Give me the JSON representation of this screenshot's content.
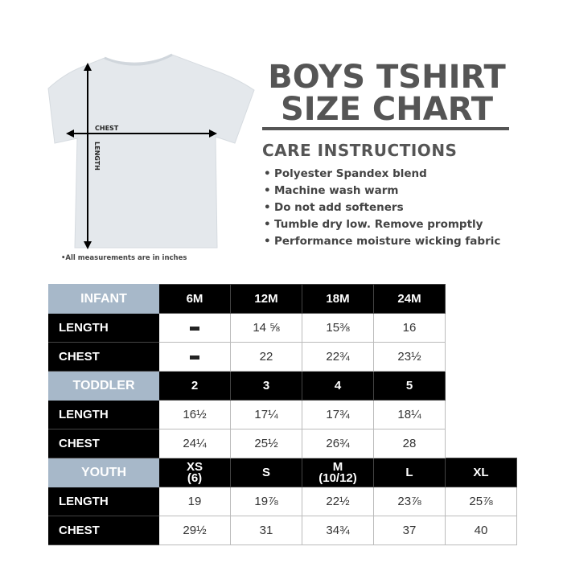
{
  "diagram": {
    "chest_label": "CHEST",
    "length_label": "LENGTH",
    "note": "•All measurements are in inches",
    "shirt_color": "#e4e8ec"
  },
  "header": {
    "title_line1": "BOYS TSHIRT",
    "title_line2": "SIZE CHART"
  },
  "care": {
    "title": "CARE INSTRUCTIONS",
    "items": [
      "Polyester Spandex blend",
      "Machine wash warm",
      "Do not add softeners",
      "Tumble dry low. Remove promptly",
      "Performance moisture wicking fabric"
    ]
  },
  "size_table": {
    "colors": {
      "group_header": "#a7b8c9",
      "header": "#000000"
    },
    "groups": [
      {
        "name": "INFANT",
        "sizes": [
          "6M",
          "12M",
          "18M",
          "24M"
        ],
        "rows": [
          {
            "label": "LENGTH",
            "values": [
              "–",
              "14 ⅝",
              "15⅜",
              "16"
            ]
          },
          {
            "label": "CHEST",
            "values": [
              "–",
              "22",
              "22¾",
              "23½"
            ]
          }
        ]
      },
      {
        "name": "TODDLER",
        "sizes": [
          "2",
          "3",
          "4",
          "5"
        ],
        "rows": [
          {
            "label": "LENGTH",
            "values": [
              "16½",
              "17¼",
              "17¾",
              "18¼"
            ]
          },
          {
            "label": "CHEST",
            "values": [
              "24¼",
              "25½",
              "26¾",
              "28"
            ]
          }
        ]
      },
      {
        "name": "YOUTH",
        "sizes": [
          "XS\n(6)",
          "S",
          "M\n(10/12)",
          "L",
          "XL"
        ],
        "rows": [
          {
            "label": "LENGTH",
            "values": [
              "19",
              "19⅞",
              "22½",
              "23⅞",
              "25⅞"
            ]
          },
          {
            "label": "CHEST",
            "values": [
              "29½",
              "31",
              "34¾",
              "37",
              "40"
            ]
          }
        ]
      }
    ]
  }
}
